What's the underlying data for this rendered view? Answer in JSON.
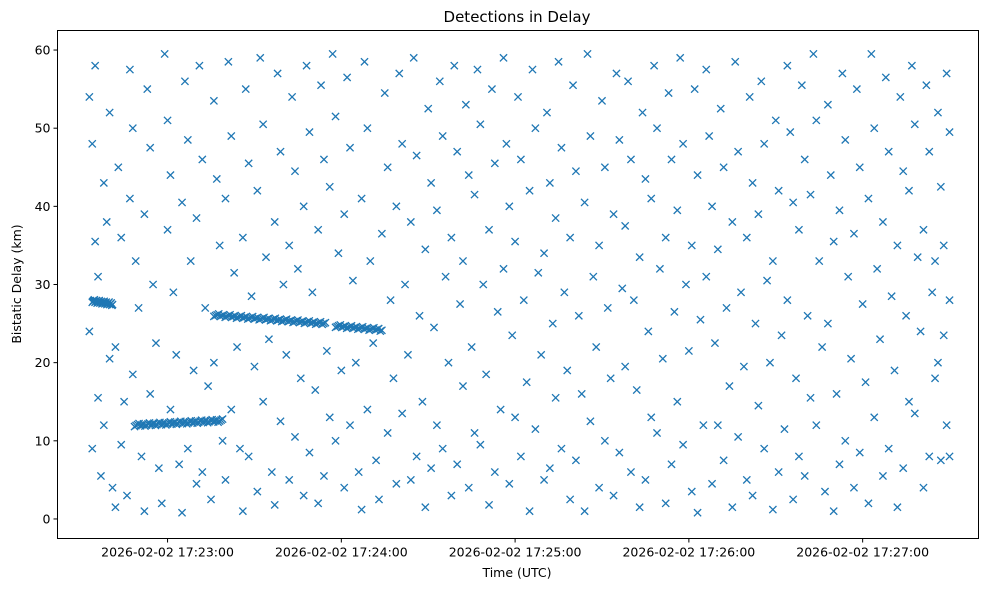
{
  "chart_data": {
    "type": "scatter",
    "title": "Detections in Delay",
    "xlabel": "Time (UTC)",
    "ylabel": "Bistatic Delay (km)",
    "x_units": "seconds after 2026-02-02 17:22:00 UTC",
    "xlim": [
      22,
      340
    ],
    "ylim": [
      -2.5,
      62.5
    ],
    "xticks": [
      {
        "value": 60,
        "label": "2026-02-02 17:23:00"
      },
      {
        "value": 120,
        "label": "2026-02-02 17:24:00"
      },
      {
        "value": 180,
        "label": "2026-02-02 17:25:00"
      },
      {
        "value": 240,
        "label": "2026-02-02 17:26:00"
      },
      {
        "value": 300,
        "label": "2026-02-02 17:27:00"
      }
    ],
    "yticks": [
      {
        "value": 0,
        "label": "0"
      },
      {
        "value": 10,
        "label": "10"
      },
      {
        "value": 20,
        "label": "20"
      },
      {
        "value": 30,
        "label": "30"
      },
      {
        "value": 40,
        "label": "40"
      },
      {
        "value": 50,
        "label": "50"
      },
      {
        "value": 60,
        "label": "60"
      }
    ],
    "grid": false,
    "marker": "x",
    "color": "#1f77b4",
    "tracks": [
      {
        "t": [
          34,
          41
        ],
        "km": [
          27.9,
          27.5
        ],
        "n": 30
      },
      {
        "t": [
          48.6,
          79
        ],
        "km": [
          12.0,
          12.6
        ],
        "n": 60
      },
      {
        "t": [
          76,
          114.5
        ],
        "km": [
          26.1,
          25.0
        ],
        "n": 70
      },
      {
        "t": [
          118,
          134
        ],
        "km": [
          24.7,
          24.2
        ],
        "n": 30
      }
    ],
    "points": [
      [
        33,
        54
      ],
      [
        34,
        48
      ],
      [
        35,
        35.5
      ],
      [
        33,
        24
      ],
      [
        36,
        15.5
      ],
      [
        34,
        9
      ],
      [
        37,
        5.5
      ],
      [
        35,
        58
      ],
      [
        38,
        43
      ],
      [
        39,
        38
      ],
      [
        36,
        31
      ],
      [
        40,
        20.5
      ],
      [
        38,
        12
      ],
      [
        41,
        4
      ],
      [
        42,
        1.5
      ],
      [
        40,
        52
      ],
      [
        43,
        45
      ],
      [
        44,
        36
      ],
      [
        42,
        22
      ],
      [
        45,
        15
      ],
      [
        44,
        9.5
      ],
      [
        46,
        3
      ],
      [
        47,
        57.5
      ],
      [
        48,
        50
      ],
      [
        47,
        41
      ],
      [
        49,
        33
      ],
      [
        50,
        27
      ],
      [
        48,
        18.5
      ],
      [
        51,
        8
      ],
      [
        52,
        1
      ],
      [
        53,
        55
      ],
      [
        54,
        47.5
      ],
      [
        52,
        39
      ],
      [
        55,
        30
      ],
      [
        56,
        22.5
      ],
      [
        54,
        16
      ],
      [
        57,
        6.5
      ],
      [
        58,
        2
      ],
      [
        59,
        59.5
      ],
      [
        60,
        51
      ],
      [
        61,
        44
      ],
      [
        60,
        37
      ],
      [
        62,
        29
      ],
      [
        63,
        21
      ],
      [
        61,
        14
      ],
      [
        64,
        7
      ],
      [
        65,
        0.8
      ],
      [
        66,
        56
      ],
      [
        67,
        48.5
      ],
      [
        65,
        40.5
      ],
      [
        68,
        33
      ],
      [
        69,
        19
      ],
      [
        67,
        9
      ],
      [
        70,
        4.5
      ],
      [
        71,
        58
      ],
      [
        72,
        46
      ],
      [
        70,
        38.5
      ],
      [
        73,
        27
      ],
      [
        74,
        17
      ],
      [
        72,
        6
      ],
      [
        75,
        2.5
      ],
      [
        76,
        53.5
      ],
      [
        77,
        43.5
      ],
      [
        78,
        35
      ],
      [
        76,
        20
      ],
      [
        79,
        10
      ],
      [
        80,
        5
      ],
      [
        81,
        58.5
      ],
      [
        82,
        49
      ],
      [
        80,
        41
      ],
      [
        83,
        31.5
      ],
      [
        84,
        22
      ],
      [
        82,
        14
      ],
      [
        85,
        9
      ],
      [
        86,
        1
      ],
      [
        87,
        55
      ],
      [
        88,
        45.5
      ],
      [
        86,
        36
      ],
      [
        89,
        28.5
      ],
      [
        90,
        19.5
      ],
      [
        88,
        8
      ],
      [
        91,
        3.5
      ],
      [
        92,
        59
      ],
      [
        93,
        50.5
      ],
      [
        91,
        42
      ],
      [
        94,
        33.5
      ],
      [
        95,
        23
      ],
      [
        93,
        15
      ],
      [
        96,
        6
      ],
      [
        97,
        1.8
      ],
      [
        98,
        57
      ],
      [
        99,
        47
      ],
      [
        97,
        38
      ],
      [
        100,
        30
      ],
      [
        101,
        21
      ],
      [
        99,
        12.5
      ],
      [
        102,
        5
      ],
      [
        103,
        54
      ],
      [
        104,
        44.5
      ],
      [
        102,
        35
      ],
      [
        105,
        32
      ],
      [
        106,
        18
      ],
      [
        104,
        10.5
      ],
      [
        107,
        3
      ],
      [
        108,
        58
      ],
      [
        109,
        49.5
      ],
      [
        107,
        40
      ],
      [
        110,
        29
      ],
      [
        111,
        16.5
      ],
      [
        109,
        8.5
      ],
      [
        112,
        2
      ],
      [
        113,
        55.5
      ],
      [
        114,
        46
      ],
      [
        112,
        37
      ],
      [
        115,
        21.5
      ],
      [
        116,
        13
      ],
      [
        114,
        5.5
      ],
      [
        117,
        59.5
      ],
      [
        118,
        51.5
      ],
      [
        116,
        42.5
      ],
      [
        119,
        34
      ],
      [
        120,
        19
      ],
      [
        118,
        10
      ],
      [
        121,
        4
      ],
      [
        122,
        56.5
      ],
      [
        123,
        47.5
      ],
      [
        121,
        39
      ],
      [
        124,
        30.5
      ],
      [
        125,
        20
      ],
      [
        123,
        12
      ],
      [
        126,
        6
      ],
      [
        127,
        1.2
      ],
      [
        128,
        58.5
      ],
      [
        129,
        50
      ],
      [
        127,
        41
      ],
      [
        130,
        33
      ],
      [
        131,
        22.5
      ],
      [
        129,
        14
      ],
      [
        132,
        7.5
      ],
      [
        133,
        2.5
      ],
      [
        135,
        54.5
      ],
      [
        136,
        45
      ],
      [
        134,
        36.5
      ],
      [
        137,
        28
      ],
      [
        138,
        18
      ],
      [
        136,
        11
      ],
      [
        139,
        4.5
      ],
      [
        140,
        57
      ],
      [
        141,
        48
      ],
      [
        139,
        40
      ],
      [
        142,
        30
      ],
      [
        143,
        21
      ],
      [
        141,
        13.5
      ],
      [
        144,
        5
      ],
      [
        145,
        59
      ],
      [
        146,
        46.5
      ],
      [
        144,
        38
      ],
      [
        147,
        26
      ],
      [
        148,
        15
      ],
      [
        146,
        8
      ],
      [
        149,
        1.5
      ],
      [
        150,
        52.5
      ],
      [
        151,
        43
      ],
      [
        149,
        34.5
      ],
      [
        152,
        24.5
      ],
      [
        153,
        12
      ],
      [
        151,
        6.5
      ],
      [
        154,
        56
      ],
      [
        155,
        49
      ],
      [
        153,
        39.5
      ],
      [
        156,
        31
      ],
      [
        157,
        20
      ],
      [
        155,
        9
      ],
      [
        158,
        3
      ],
      [
        159,
        58
      ],
      [
        160,
        47
      ],
      [
        158,
        36
      ],
      [
        161,
        27.5
      ],
      [
        162,
        17
      ],
      [
        160,
        7
      ],
      [
        163,
        53
      ],
      [
        164,
        44
      ],
      [
        162,
        33
      ],
      [
        165,
        22
      ],
      [
        166,
        11
      ],
      [
        164,
        4
      ],
      [
        167,
        57.5
      ],
      [
        168,
        50.5
      ],
      [
        166,
        41.5
      ],
      [
        169,
        30
      ],
      [
        170,
        18.5
      ],
      [
        168,
        9.5
      ],
      [
        171,
        1.8
      ],
      [
        172,
        55
      ],
      [
        173,
        45.5
      ],
      [
        171,
        37
      ],
      [
        174,
        26.5
      ],
      [
        175,
        14
      ],
      [
        173,
        6
      ],
      [
        176,
        59
      ],
      [
        177,
        48
      ],
      [
        178,
        40
      ],
      [
        176,
        32
      ],
      [
        179,
        23.5
      ],
      [
        180,
        13
      ],
      [
        178,
        4.5
      ],
      [
        181,
        54
      ],
      [
        182,
        46
      ],
      [
        180,
        35.5
      ],
      [
        183,
        28
      ],
      [
        184,
        17.5
      ],
      [
        182,
        8
      ],
      [
        185,
        1
      ],
      [
        186,
        57.5
      ],
      [
        187,
        50
      ],
      [
        185,
        42
      ],
      [
        188,
        31.5
      ],
      [
        189,
        21
      ],
      [
        187,
        11.5
      ],
      [
        190,
        5
      ],
      [
        191,
        52
      ],
      [
        192,
        43
      ],
      [
        190,
        34
      ],
      [
        193,
        25
      ],
      [
        194,
        15.5
      ],
      [
        192,
        6.5
      ],
      [
        195,
        58.5
      ],
      [
        196,
        47.5
      ],
      [
        194,
        38.5
      ],
      [
        197,
        29
      ],
      [
        198,
        19
      ],
      [
        196,
        9
      ],
      [
        199,
        2.5
      ],
      [
        200,
        55.5
      ],
      [
        201,
        44.5
      ],
      [
        199,
        36
      ],
      [
        202,
        26
      ],
      [
        203,
        16
      ],
      [
        201,
        7.5
      ],
      [
        204,
        1
      ],
      [
        205,
        59.5
      ],
      [
        206,
        49
      ],
      [
        204,
        40.5
      ],
      [
        207,
        31
      ],
      [
        208,
        22
      ],
      [
        206,
        12.5
      ],
      [
        209,
        4
      ],
      [
        210,
        53.5
      ],
      [
        211,
        45
      ],
      [
        209,
        35
      ],
      [
        212,
        27
      ],
      [
        213,
        18
      ],
      [
        211,
        10
      ],
      [
        214,
        3
      ],
      [
        215,
        57
      ],
      [
        216,
        48.5
      ],
      [
        214,
        39
      ],
      [
        217,
        29.5
      ],
      [
        218,
        19.5
      ],
      [
        216,
        8.5
      ],
      [
        219,
        56
      ],
      [
        220,
        46
      ],
      [
        218,
        37.5
      ],
      [
        221,
        28
      ],
      [
        222,
        16.5
      ],
      [
        220,
        6
      ],
      [
        223,
        1.5
      ],
      [
        224,
        52
      ],
      [
        225,
        43.5
      ],
      [
        223,
        33.5
      ],
      [
        226,
        24
      ],
      [
        227,
        13
      ],
      [
        225,
        5
      ],
      [
        228,
        58
      ],
      [
        229,
        50
      ],
      [
        227,
        41
      ],
      [
        230,
        32
      ],
      [
        231,
        20.5
      ],
      [
        229,
        11
      ],
      [
        232,
        2
      ],
      [
        233,
        54.5
      ],
      [
        234,
        46
      ],
      [
        232,
        36
      ],
      [
        235,
        26.5
      ],
      [
        236,
        15
      ],
      [
        234,
        7
      ],
      [
        237,
        59
      ],
      [
        238,
        48
      ],
      [
        236,
        39.5
      ],
      [
        239,
        30
      ],
      [
        240,
        21.5
      ],
      [
        238,
        9.5
      ],
      [
        241,
        3.5
      ],
      [
        242,
        55
      ],
      [
        243,
        44
      ],
      [
        241,
        35
      ],
      [
        244,
        25.5
      ],
      [
        245,
        12
      ],
      [
        243,
        0.8
      ],
      [
        246,
        57.5
      ],
      [
        247,
        49
      ],
      [
        248,
        40
      ],
      [
        246,
        31
      ],
      [
        249,
        22.5
      ],
      [
        250,
        12
      ],
      [
        248,
        4.5
      ],
      [
        251,
        52.5
      ],
      [
        252,
        45
      ],
      [
        250,
        34.5
      ],
      [
        253,
        27
      ],
      [
        254,
        17
      ],
      [
        252,
        7.5
      ],
      [
        255,
        1.5
      ],
      [
        256,
        58.5
      ],
      [
        257,
        47
      ],
      [
        255,
        38
      ],
      [
        258,
        29
      ],
      [
        259,
        19.5
      ],
      [
        257,
        10.5
      ],
      [
        260,
        5
      ],
      [
        261,
        54
      ],
      [
        262,
        43
      ],
      [
        260,
        36
      ],
      [
        263,
        25
      ],
      [
        264,
        14.5
      ],
      [
        262,
        3
      ],
      [
        265,
        56
      ],
      [
        266,
        48
      ],
      [
        264,
        39
      ],
      [
        267,
        30.5
      ],
      [
        268,
        20
      ],
      [
        266,
        9
      ],
      [
        269,
        1.2
      ],
      [
        270,
        51
      ],
      [
        271,
        42
      ],
      [
        269,
        33
      ],
      [
        272,
        23.5
      ],
      [
        273,
        11.5
      ],
      [
        271,
        6
      ],
      [
        274,
        58
      ],
      [
        275,
        49.5
      ],
      [
        276,
        40.5
      ],
      [
        274,
        28
      ],
      [
        277,
        18
      ],
      [
        278,
        8
      ],
      [
        276,
        2.5
      ],
      [
        279,
        55.5
      ],
      [
        280,
        46
      ],
      [
        278,
        37
      ],
      [
        281,
        26
      ],
      [
        282,
        15.5
      ],
      [
        280,
        5.5
      ],
      [
        283,
        59.5
      ],
      [
        284,
        51
      ],
      [
        282,
        41.5
      ],
      [
        285,
        33
      ],
      [
        286,
        22
      ],
      [
        284,
        12
      ],
      [
        287,
        3.5
      ],
      [
        288,
        53
      ],
      [
        289,
        44
      ],
      [
        290,
        35.5
      ],
      [
        288,
        25
      ],
      [
        291,
        16
      ],
      [
        292,
        7
      ],
      [
        290,
        1
      ],
      [
        293,
        57
      ],
      [
        294,
        48.5
      ],
      [
        292,
        39.5
      ],
      [
        295,
        31
      ],
      [
        296,
        20.5
      ],
      [
        294,
        10
      ],
      [
        297,
        4
      ],
      [
        298,
        55
      ],
      [
        299,
        45
      ],
      [
        297,
        36.5
      ],
      [
        300,
        27.5
      ],
      [
        301,
        17.5
      ],
      [
        299,
        8.5
      ],
      [
        302,
        2
      ],
      [
        303,
        59.5
      ],
      [
        304,
        50
      ],
      [
        302,
        41
      ],
      [
        305,
        32
      ],
      [
        306,
        23
      ],
      [
        304,
        13
      ],
      [
        307,
        5.5
      ],
      [
        308,
        56.5
      ],
      [
        309,
        47
      ],
      [
        307,
        38
      ],
      [
        310,
        28.5
      ],
      [
        311,
        19
      ],
      [
        309,
        9
      ],
      [
        312,
        1.5
      ],
      [
        313,
        54
      ],
      [
        314,
        44.5
      ],
      [
        312,
        35
      ],
      [
        315,
        26
      ],
      [
        316,
        15
      ],
      [
        314,
        6.5
      ],
      [
        317,
        58
      ],
      [
        318,
        50.5
      ],
      [
        316,
        42
      ],
      [
        319,
        33.5
      ],
      [
        320,
        24
      ],
      [
        318,
        13.5
      ],
      [
        321,
        4
      ],
      [
        322,
        55.5
      ],
      [
        323,
        47
      ],
      [
        321,
        37
      ],
      [
        324,
        29
      ],
      [
        325,
        18
      ],
      [
        323,
        8
      ],
      [
        326,
        52
      ],
      [
        327,
        42.5
      ],
      [
        325,
        33
      ],
      [
        328,
        23.5
      ],
      [
        329,
        12
      ],
      [
        327,
        7.5
      ],
      [
        330,
        49.5
      ],
      [
        329,
        57
      ],
      [
        330,
        28
      ],
      [
        330,
        8
      ],
      [
        328,
        35
      ],
      [
        326,
        20
      ]
    ]
  }
}
